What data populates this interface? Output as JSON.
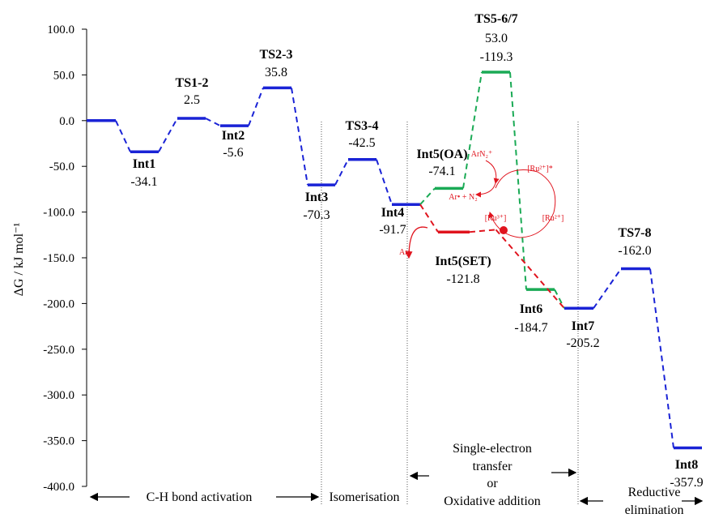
{
  "chart_data": {
    "type": "line",
    "title": "",
    "ylabel": "ΔG / kJ mol⁻¹",
    "ylim": [
      -400,
      100
    ],
    "yticks": [
      "100.0",
      "50.0",
      "0.0",
      "-50.0",
      "-100.0",
      "-150.0",
      "-200.0",
      "-250.0",
      "-300.0",
      "-350.0",
      "-400.0"
    ],
    "ytick_values": [
      100,
      50,
      0,
      -50,
      -100,
      -150,
      -200,
      -250,
      -300,
      -350,
      -400
    ],
    "colors": {
      "main": "#1a23d6",
      "oa": "#1aaa55",
      "set": "#e0141e"
    },
    "series": [
      {
        "key": "main_pre",
        "color_key": "main",
        "points": [
          {
            "label": "",
            "value": 0.0
          },
          {
            "label": "Int1",
            "value": -34.1
          },
          {
            "label": "TS1-2",
            "value": 2.5
          },
          {
            "label": "Int2",
            "value": -5.6
          },
          {
            "label": "TS2-3",
            "value": 35.8
          },
          {
            "label": "Int3",
            "value": -70.3
          },
          {
            "label": "TS3-4",
            "value": -42.5
          },
          {
            "label": "Int4",
            "value": -91.7
          }
        ]
      },
      {
        "key": "oa",
        "color_key": "oa",
        "points": [
          {
            "label": "Int4",
            "value": -91.7
          },
          {
            "label": "Int5(OA)",
            "value": -74.1
          },
          {
            "label": "TS5-6/7",
            "value": 53.0
          },
          {
            "label": "Int6",
            "value": -184.7
          },
          {
            "label": "Int7",
            "value": -205.2
          }
        ]
      },
      {
        "key": "set",
        "color_key": "set",
        "points": [
          {
            "label": "Int4",
            "value": -91.7
          },
          {
            "label": "Int5(SET)",
            "value": -121.8
          },
          {
            "label": "TS5-6/7",
            "value": -119.3
          },
          {
            "label": "Int7",
            "value": -205.2
          }
        ]
      },
      {
        "key": "main_post",
        "color_key": "main",
        "points": [
          {
            "label": "Int7",
            "value": -205.2
          },
          {
            "label": "TS7-8",
            "value": -162.0
          },
          {
            "label": "Int8",
            "value": -357.9
          }
        ]
      }
    ],
    "annotations": [
      {
        "name": "TS1-2",
        "value": "2.5"
      },
      {
        "name": "TS2-3",
        "value": "35.8"
      },
      {
        "name": "Int1",
        "value": "-34.1"
      },
      {
        "name": "Int2",
        "value": "-5.6"
      },
      {
        "name": "TS3-4",
        "value": "-42.5"
      },
      {
        "name": "Int3",
        "value": "-70.3"
      },
      {
        "name": "Int4",
        "value": "-91.7"
      },
      {
        "name": "Int5(OA)",
        "value": "-74.1",
        "color_key": "oa"
      },
      {
        "name": "TS5-6/7",
        "value": "53.0",
        "value2": "-119.3",
        "color_key": "oa",
        "color2_key": "set"
      },
      {
        "name": "Int5(SET)",
        "value": "-121.8",
        "color_key": "set"
      },
      {
        "name": "Int6",
        "value": "-184.7",
        "color_key": "oa"
      },
      {
        "name": "Int7",
        "value": "-205.2"
      },
      {
        "name": "TS7-8",
        "value": "-162.0"
      },
      {
        "name": "Int8",
        "value": "-357.9"
      }
    ],
    "regions": {
      "ch_activation": "C-H bond activation",
      "isomerisation": "Isomerisation",
      "set_line1": "Single-electron",
      "set_line2": "transfer",
      "or": "or",
      "oxidative_addition": "Oxidative addition",
      "reductive_line1": "Reductive",
      "reductive_line2": "elimination"
    },
    "cycle_labels": {
      "arn2": "ArN₂⁺",
      "ru2_radical": "[Ru²⁺]*",
      "ar_n2": "Ar• + N₂",
      "ru3": "[Ru³⁺]",
      "ru2": "[Ru²⁺]",
      "ar_radical": "Ar•"
    }
  }
}
